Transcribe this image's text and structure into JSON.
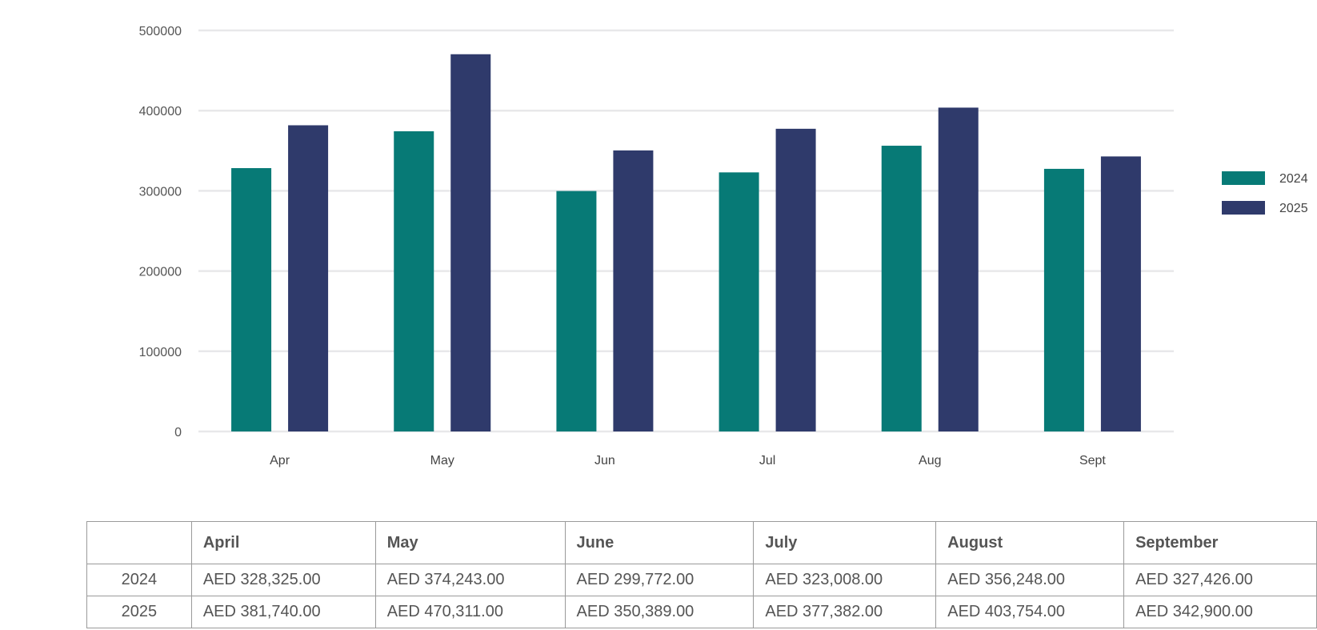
{
  "chart_data": {
    "type": "bar",
    "categories": [
      "Apr",
      "May",
      "Jun",
      "Jul",
      "Aug",
      "Sept"
    ],
    "series": [
      {
        "name": "2024",
        "color": "#077a76",
        "values": [
          328325,
          374243,
          299772,
          323008,
          356248,
          327426
        ]
      },
      {
        "name": "2025",
        "color": "#2f3a6b",
        "values": [
          381740,
          470311,
          350389,
          377382,
          403754,
          342900
        ]
      }
    ],
    "y_ticks": [
      "0",
      "100000",
      "200000",
      "300000",
      "400000",
      "500000"
    ],
    "ylim": [
      0,
      500000
    ],
    "grid": true,
    "legend": "right"
  },
  "table": {
    "headers": [
      "",
      "April",
      "May",
      "June",
      "July",
      "August",
      "September"
    ],
    "rows": [
      {
        "label": "2024",
        "cells": [
          "AED 328,325.00",
          "AED 374,243.00",
          "AED 299,772.00",
          "AED 323,008.00",
          "AED 356,248.00",
          "AED 327,426.00"
        ]
      },
      {
        "label": "2025",
        "cells": [
          "AED 381,740.00",
          "AED 470,311.00",
          "AED 350,389.00",
          "AED 377,382.00",
          "AED 403,754.00",
          "AED 342,900.00"
        ]
      }
    ]
  }
}
